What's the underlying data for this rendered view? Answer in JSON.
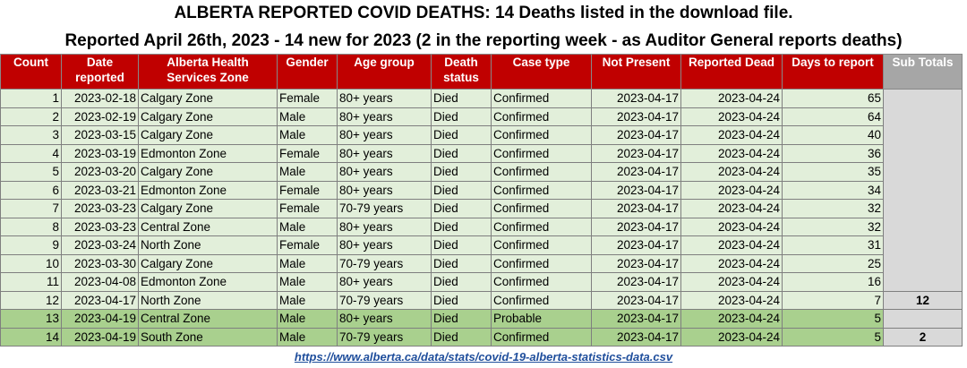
{
  "title_line1": "ALBERTA REPORTED COVID DEATHS: 14 Deaths listed in the download file.",
  "title_line2": "Reported April 26th, 2023 - 14 new for 2023 (2 in the reporting week - as Auditor General reports deaths)",
  "headers": {
    "count": "Count",
    "date_reported": "Date reported",
    "zone": "Alberta Health Services Zone",
    "gender": "Gender",
    "age_group": "Age group",
    "death_status": "Death status",
    "case_type": "Case type",
    "not_present": "Not Present",
    "reported_dead": "Reported Dead",
    "days_to_report": "Days to report",
    "sub_totals": "Sub Totals"
  },
  "rows": [
    {
      "count": "1",
      "date": "2023-02-18",
      "zone": "Calgary Zone",
      "gender": "Female",
      "age": "80+ years",
      "status": "Died",
      "case": "Confirmed",
      "not_present": "2023-04-17",
      "reported": "2023-04-24",
      "days": "65"
    },
    {
      "count": "2",
      "date": "2023-02-19",
      "zone": "Calgary Zone",
      "gender": "Male",
      "age": "80+ years",
      "status": "Died",
      "case": "Confirmed",
      "not_present": "2023-04-17",
      "reported": "2023-04-24",
      "days": "64"
    },
    {
      "count": "3",
      "date": "2023-03-15",
      "zone": "Calgary Zone",
      "gender": "Male",
      "age": "80+ years",
      "status": "Died",
      "case": "Confirmed",
      "not_present": "2023-04-17",
      "reported": "2023-04-24",
      "days": "40"
    },
    {
      "count": "4",
      "date": "2023-03-19",
      "zone": "Edmonton Zone",
      "gender": "Female",
      "age": "80+ years",
      "status": "Died",
      "case": "Confirmed",
      "not_present": "2023-04-17",
      "reported": "2023-04-24",
      "days": "36"
    },
    {
      "count": "5",
      "date": "2023-03-20",
      "zone": "Calgary Zone",
      "gender": "Male",
      "age": "80+ years",
      "status": "Died",
      "case": "Confirmed",
      "not_present": "2023-04-17",
      "reported": "2023-04-24",
      "days": "35"
    },
    {
      "count": "6",
      "date": "2023-03-21",
      "zone": "Edmonton Zone",
      "gender": "Female",
      "age": "80+ years",
      "status": "Died",
      "case": "Confirmed",
      "not_present": "2023-04-17",
      "reported": "2023-04-24",
      "days": "34"
    },
    {
      "count": "7",
      "date": "2023-03-23",
      "zone": "Calgary Zone",
      "gender": "Female",
      "age": "70-79 years",
      "status": "Died",
      "case": "Confirmed",
      "not_present": "2023-04-17",
      "reported": "2023-04-24",
      "days": "32"
    },
    {
      "count": "8",
      "date": "2023-03-23",
      "zone": "Central Zone",
      "gender": "Male",
      "age": "80+ years",
      "status": "Died",
      "case": "Confirmed",
      "not_present": "2023-04-17",
      "reported": "2023-04-24",
      "days": "32"
    },
    {
      "count": "9",
      "date": "2023-03-24",
      "zone": "North Zone",
      "gender": "Female",
      "age": "80+ years",
      "status": "Died",
      "case": "Confirmed",
      "not_present": "2023-04-17",
      "reported": "2023-04-24",
      "days": "31"
    },
    {
      "count": "10",
      "date": "2023-03-30",
      "zone": "Calgary Zone",
      "gender": "Male",
      "age": "70-79 years",
      "status": "Died",
      "case": "Confirmed",
      "not_present": "2023-04-17",
      "reported": "2023-04-24",
      "days": "25"
    },
    {
      "count": "11",
      "date": "2023-04-08",
      "zone": "Edmonton Zone",
      "gender": "Male",
      "age": "80+ years",
      "status": "Died",
      "case": "Confirmed",
      "not_present": "2023-04-17",
      "reported": "2023-04-24",
      "days": "16"
    },
    {
      "count": "12",
      "date": "2023-04-17",
      "zone": "North Zone",
      "gender": "Male",
      "age": "70-79 years",
      "status": "Died",
      "case": "Confirmed",
      "not_present": "2023-04-17",
      "reported": "2023-04-24",
      "days": "7"
    },
    {
      "count": "13",
      "date": "2023-04-19",
      "zone": "Central Zone",
      "gender": "Male",
      "age": "80+ years",
      "status": "Died",
      "case": "Probable",
      "not_present": "2023-04-17",
      "reported": "2023-04-24",
      "days": "5"
    },
    {
      "count": "14",
      "date": "2023-04-19",
      "zone": "South Zone",
      "gender": "Male",
      "age": "70-79 years",
      "status": "Died",
      "case": "Confirmed",
      "not_present": "2023-04-17",
      "reported": "2023-04-24",
      "days": "5"
    }
  ],
  "sub_totals": [
    "",
    "",
    "",
    "",
    "",
    "",
    "",
    "",
    "",
    "",
    "",
    "12",
    "",
    "2"
  ],
  "source_url": "https://www.alberta.ca/data/stats/covid-19-alberta-statistics-data.csv",
  "colors": {
    "header_red": "#c00000",
    "light_row": "#e2efda",
    "green_row": "#a9d08e",
    "subtotal_grey": "#d9d9d9"
  }
}
